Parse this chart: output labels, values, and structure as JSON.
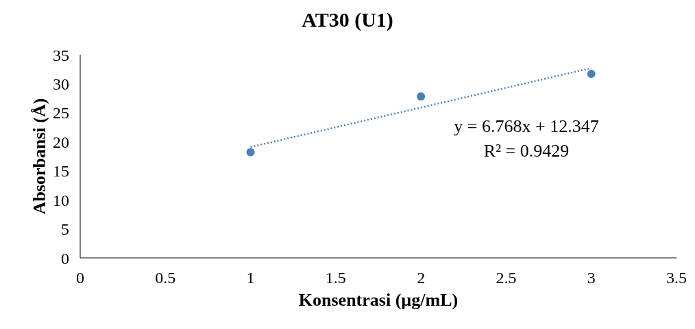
{
  "chart_data": {
    "type": "scatter",
    "title": "AT30 (U1)",
    "xlabel": "Konsentrasi (µg/mL)",
    "ylabel": "Absorbansi (Å)",
    "x": [
      1,
      2,
      3
    ],
    "series": [
      {
        "color": "#4a7ebb",
        "values": [
          18.2,
          27.8,
          31.7
        ],
        "marker": "circle"
      },
      {
        "type": "line",
        "color": "#4a7ebb",
        "x": [
          1,
          3
        ],
        "values": [
          19.1,
          32.7
        ],
        "line_style": "dotted",
        "marker": "none"
      }
    ],
    "xlim": [
      0,
      3.5
    ],
    "xticks": [
      0,
      0.5,
      1,
      1.5,
      2,
      2.5,
      3,
      3.5
    ],
    "ylim": [
      0,
      35
    ],
    "yticks": [
      0,
      5,
      10,
      15,
      20,
      25,
      30,
      35
    ],
    "grid": false,
    "legend": false,
    "annotations": [
      "y = 6.768x + 12.347",
      "R² = 0.9429"
    ]
  }
}
